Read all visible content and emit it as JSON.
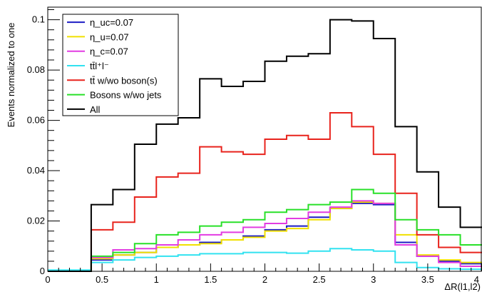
{
  "chart_data": {
    "type": "line",
    "drawstyle": "steps",
    "title": "",
    "xlabel": "ΔR(l1,l2)",
    "ylabel": "Events normalized to one",
    "xlim": [
      0,
      4
    ],
    "ylim": [
      0,
      0.105
    ],
    "x_ticks": [
      "0",
      "0.5",
      "1",
      "1.5",
      "2",
      "2.5",
      "3",
      "3.5",
      "4"
    ],
    "y_ticks": [
      "0",
      "0.02",
      "0.04",
      "0.06",
      "0.08",
      "0.1"
    ],
    "legend_position": "top-left",
    "bin_edges": [
      0,
      0.2,
      0.4,
      0.6,
      0.8,
      1.0,
      1.2,
      1.4,
      1.6,
      1.8,
      2.0,
      2.2,
      2.4,
      2.6,
      2.8,
      3.0,
      3.2,
      3.4,
      3.6,
      3.8,
      4.0
    ],
    "series": [
      {
        "name": "η_uc=0.07",
        "color": "#1c1cc4",
        "values": [
          0,
          0,
          0.0045,
          0.0065,
          0.0075,
          0.0095,
          0.0105,
          0.0115,
          0.0125,
          0.014,
          0.0165,
          0.018,
          0.0215,
          0.025,
          0.027,
          0.0265,
          0.0115,
          0.006,
          0.004,
          0.003
        ]
      },
      {
        "name": "η_u=0.07",
        "color": "#f0e000",
        "values": [
          0,
          0,
          0.005,
          0.0065,
          0.0075,
          0.0095,
          0.0105,
          0.011,
          0.0125,
          0.0135,
          0.016,
          0.017,
          0.0205,
          0.025,
          0.0275,
          0.027,
          0.0145,
          0.0065,
          0.0045,
          0.0035
        ]
      },
      {
        "name": "η_c=0.07",
        "color": "#e23ce2",
        "values": [
          0,
          0,
          0.0055,
          0.0085,
          0.009,
          0.0105,
          0.0125,
          0.0145,
          0.0155,
          0.0175,
          0.019,
          0.021,
          0.0235,
          0.0255,
          0.028,
          0.027,
          0.0105,
          0.006,
          0.0035,
          0.002
        ]
      },
      {
        "name": "tt̄l⁺l⁻",
        "color": "#32e2f0",
        "values": [
          0.0005,
          0.0005,
          0.0035,
          0.0045,
          0.0055,
          0.006,
          0.0065,
          0.007,
          0.007,
          0.0075,
          0.0075,
          0.0072,
          0.008,
          0.009,
          0.0085,
          0.008,
          0.0035,
          0.0015,
          0.001,
          0.0008
        ]
      },
      {
        "name": "tt̄ w/wo boson(s)",
        "color": "#e8231c",
        "values": [
          0,
          0,
          0.0165,
          0.0195,
          0.0295,
          0.0375,
          0.039,
          0.0495,
          0.0475,
          0.0465,
          0.0525,
          0.054,
          0.0525,
          0.063,
          0.0575,
          0.0465,
          0.031,
          0.0145,
          0.0095,
          0.0075
        ]
      },
      {
        "name": "Bosons w/wo jets",
        "color": "#28e028",
        "values": [
          0,
          0,
          0.006,
          0.0075,
          0.011,
          0.0145,
          0.0155,
          0.018,
          0.0195,
          0.0205,
          0.0235,
          0.0245,
          0.0265,
          0.0275,
          0.0325,
          0.031,
          0.0205,
          0.0165,
          0.0145,
          0.0105
        ]
      },
      {
        "name": "All",
        "color": "#000000",
        "values": [
          0,
          0,
          0.0265,
          0.0325,
          0.0505,
          0.0585,
          0.061,
          0.0765,
          0.0735,
          0.0755,
          0.0835,
          0.0855,
          0.0865,
          0.1,
          0.0995,
          0.0925,
          0.0575,
          0.0395,
          0.0255,
          0.0175
        ]
      }
    ]
  }
}
